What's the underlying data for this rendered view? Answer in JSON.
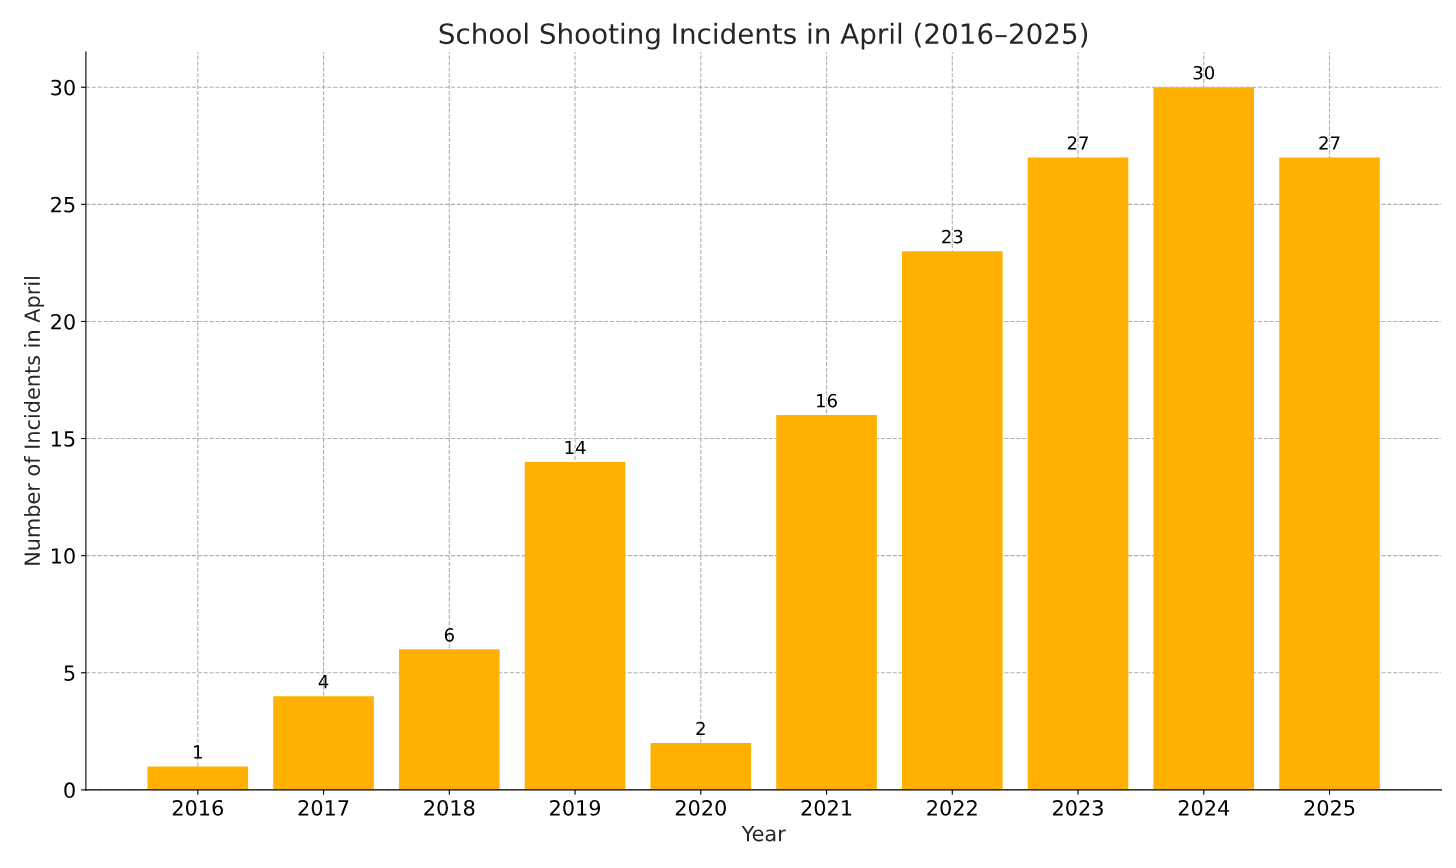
{
  "chart_data": {
    "type": "bar",
    "title": "School Shooting Incidents in April (2016–2025)",
    "xlabel": "Year",
    "ylabel": "Number of Incidents in April",
    "categories": [
      "2016",
      "2017",
      "2018",
      "2019",
      "2020",
      "2021",
      "2022",
      "2023",
      "2024",
      "2025"
    ],
    "values": [
      1,
      4,
      6,
      14,
      2,
      16,
      23,
      27,
      30,
      27
    ],
    "color": "#ffb000",
    "ylim": [
      0,
      31.5
    ],
    "yticks": [
      0,
      5,
      10,
      15,
      20,
      25,
      30
    ],
    "grid": true,
    "data_labels": true
  }
}
